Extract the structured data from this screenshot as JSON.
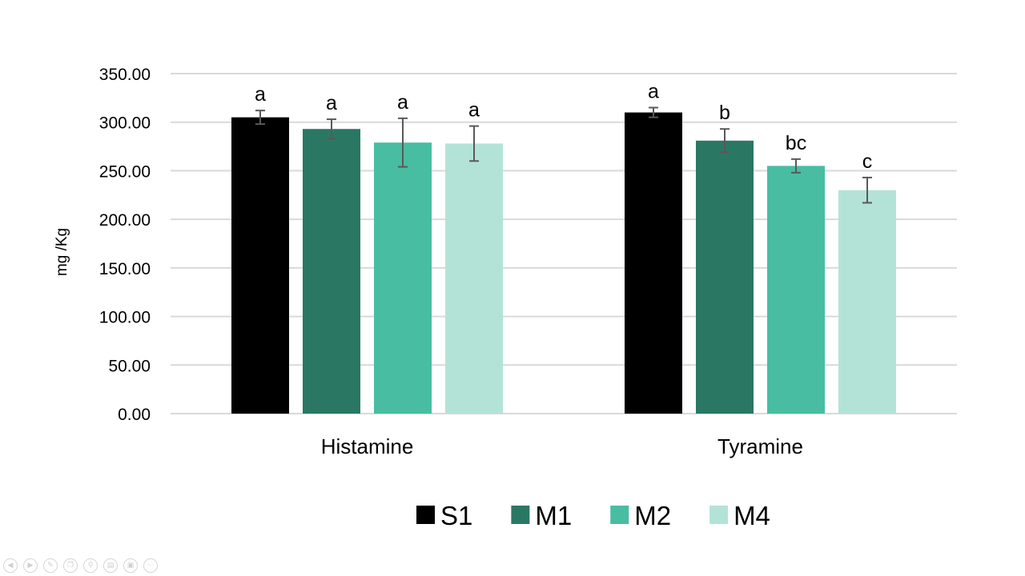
{
  "chart_data": {
    "type": "bar",
    "ylabel": "mg /Kg",
    "ylim": [
      0,
      350
    ],
    "yticks": [
      "0.00",
      "50.00",
      "100.00",
      "150.00",
      "200.00",
      "250.00",
      "300.00",
      "350.00"
    ],
    "categories": [
      "Histamine",
      "Tyramine"
    ],
    "grid": true,
    "legend_position": "bottom",
    "series": [
      {
        "name": "S1",
        "color": "#000000",
        "values": [
          305,
          310
        ],
        "errors": [
          7,
          5
        ],
        "labels": [
          "a",
          "a"
        ]
      },
      {
        "name": "M1",
        "color": "#2a7864",
        "values": [
          293,
          281
        ],
        "errors": [
          10,
          12
        ],
        "labels": [
          "a",
          "b"
        ]
      },
      {
        "name": "M2",
        "color": "#48bda2",
        "values": [
          279,
          255
        ],
        "errors": [
          25,
          7
        ],
        "labels": [
          "a",
          "bc"
        ]
      },
      {
        "name": "M4",
        "color": "#b3e3d7",
        "values": [
          278,
          230
        ],
        "errors": [
          18,
          13
        ],
        "labels": [
          "a",
          "c"
        ]
      }
    ]
  },
  "slide_controls": [
    "previous-icon",
    "next-icon",
    "pen-icon",
    "copy-icon",
    "zoom-icon",
    "subtitles-icon",
    "hide-icon",
    "more-icon"
  ]
}
